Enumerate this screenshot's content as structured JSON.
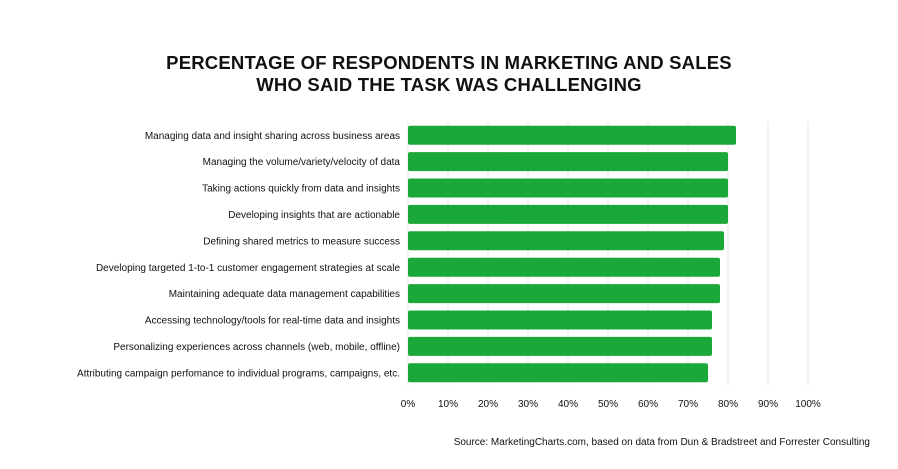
{
  "chart_data": {
    "type": "bar",
    "orientation": "horizontal",
    "title_lines": [
      "PERCENTAGE OF RESPONDENTS IN MARKETING AND SALES",
      "WHO SAID THE TASK WAS CHALLENGING"
    ],
    "categories": [
      "Managing data and insight sharing across business areas",
      "Managing the volume/variety/velocity of data",
      "Taking actions quickly from data and insights",
      "Developing insights that are actionable",
      "Defining shared metrics to measure success",
      "Developing targeted 1-to-1 customer engagement strategies at scale",
      "Maintaining adequate data management capabilities",
      "Accessing technology/tools for real-time data and insights",
      "Personalizing experiences across channels (web, mobile, offline)",
      "Attributing campaign perfomance to individual programs, campaigns, etc."
    ],
    "values": [
      82,
      80,
      80,
      80,
      79,
      78,
      78,
      76,
      76,
      75
    ],
    "x_ticks": [
      "0%",
      "10%",
      "20%",
      "30%",
      "40%",
      "50%",
      "60%",
      "70%",
      "80%",
      "90%",
      "100%"
    ],
    "xlim": [
      0,
      100
    ],
    "bar_color": "#1aa83a",
    "grid": true,
    "source": "Source: MarketingCharts.com, based on data from Dun & Bradstreet and Forrester Consulting"
  }
}
